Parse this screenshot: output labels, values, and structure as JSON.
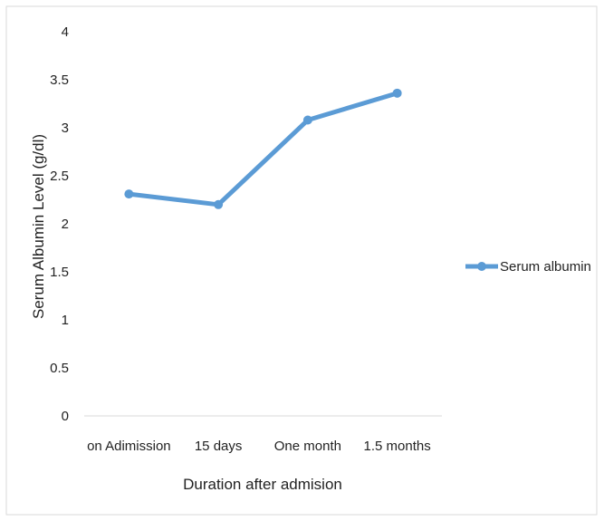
{
  "chart_data": {
    "type": "line",
    "categories": [
      "on Adimission",
      "15 days",
      "One month",
      "1.5 months"
    ],
    "series": [
      {
        "name": "Serum albumin",
        "values": [
          2.31,
          2.2,
          3.08,
          3.36
        ],
        "color": "#5b9bd5"
      }
    ],
    "ylabel": "Serum Albumin Level  (g/dl)",
    "xlabel": "Duration after admision",
    "ylim": [
      0,
      4
    ],
    "yticks": [
      "0",
      "0.5",
      "1",
      "1.5",
      "2",
      "2.5",
      "3",
      "3.5",
      "4"
    ],
    "grid": false,
    "legend": "right"
  }
}
